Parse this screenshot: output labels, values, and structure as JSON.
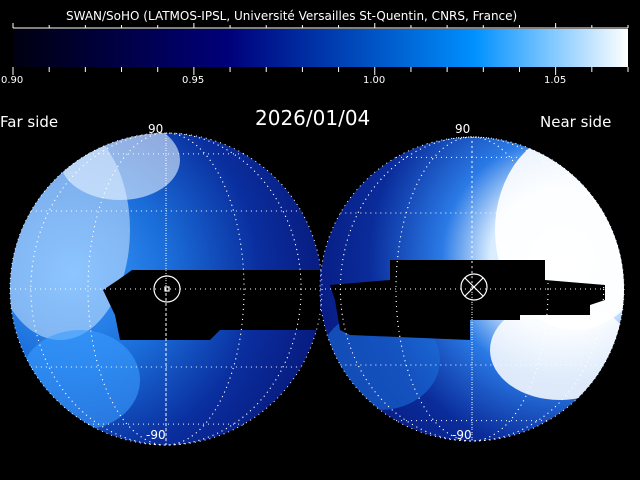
{
  "header": {
    "credit": "SWAN/SoHO (LATMOS-IPSL, Université Versailles St-Quentin, CNRS, France)"
  },
  "colorbar": {
    "tick_labels": [
      "0.90",
      "0.95",
      "1.00",
      "1.05"
    ],
    "range": [
      0.9,
      1.07
    ],
    "colors": [
      "#000000",
      "#000080",
      "#0080ff",
      "#ffffff"
    ]
  },
  "date": "2026/01/04",
  "far_side": {
    "label": "Far side",
    "top_label": "90",
    "bottom_label": "-90"
  },
  "near_side": {
    "label": "Near side",
    "top_label": "90",
    "bottom_label": "-90"
  }
}
